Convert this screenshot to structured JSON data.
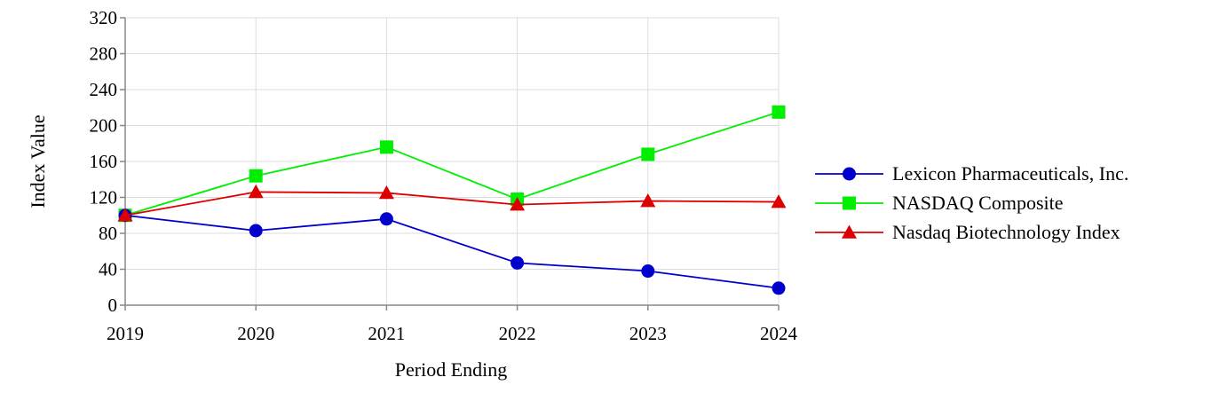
{
  "chart_data": {
    "type": "line",
    "title": "",
    "xlabel": "Period Ending",
    "ylabel": "Index Value",
    "x": [
      "2019",
      "2020",
      "2021",
      "2022",
      "2023",
      "2024"
    ],
    "ylim": [
      0,
      320
    ],
    "yticks": [
      "0",
      "40",
      "80",
      "120",
      "160",
      "200",
      "240",
      "280",
      "320"
    ],
    "grid": true,
    "legend_position": "right",
    "series": [
      {
        "name": "Lexicon Pharmaceuticals, Inc.",
        "color": "#0000cc",
        "marker": "circle",
        "values": [
          100,
          83,
          96,
          47,
          38,
          19
        ]
      },
      {
        "name": "NASDAQ Composite",
        "color": "#00ee00",
        "marker": "square",
        "values": [
          100,
          144,
          176,
          118,
          168,
          215
        ]
      },
      {
        "name": "Nasdaq Biotechnology Index",
        "color": "#dd0000",
        "marker": "triangle",
        "values": [
          100,
          126,
          125,
          112,
          116,
          115
        ]
      }
    ]
  }
}
